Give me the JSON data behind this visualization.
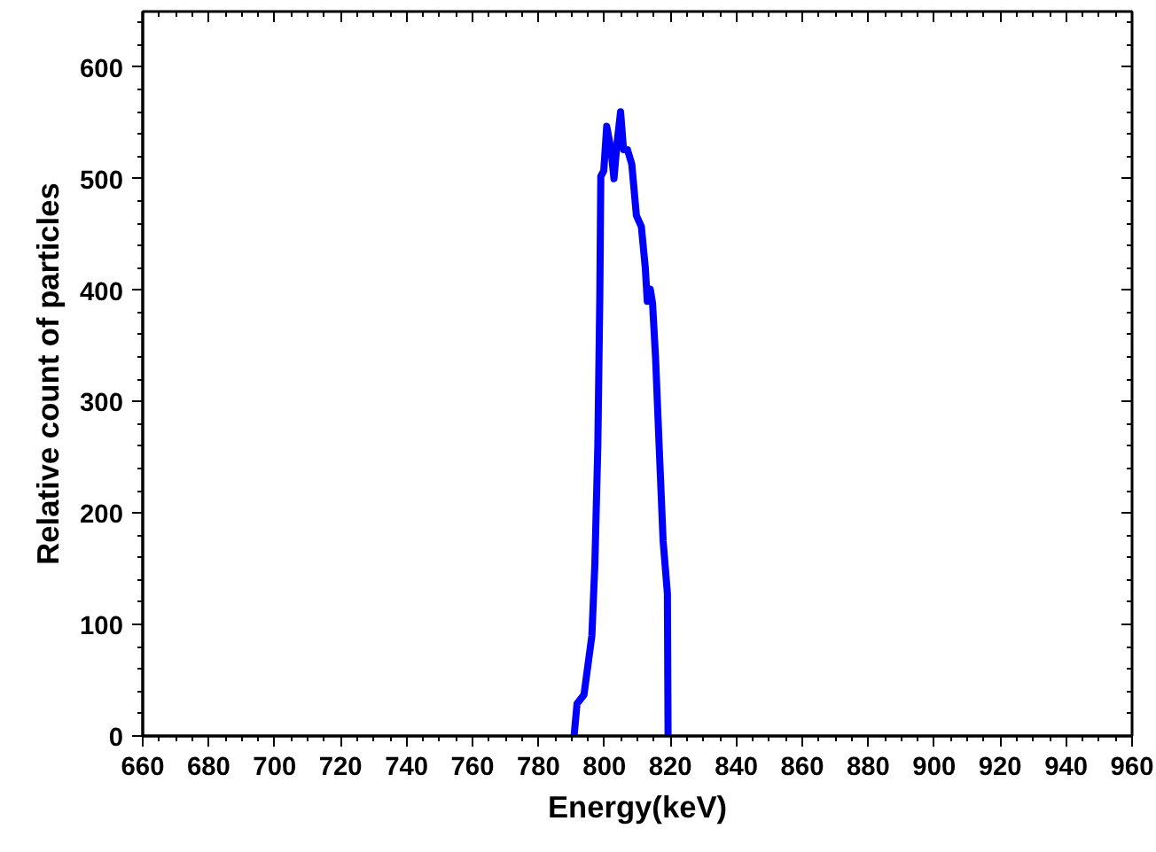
{
  "chart_data": {
    "type": "line",
    "xlabel": "Energy(keV)",
    "ylabel": "Relative count of particles",
    "xlim": [
      660,
      960
    ],
    "ylim": [
      0,
      650
    ],
    "xticks": [
      660,
      680,
      700,
      720,
      740,
      760,
      780,
      800,
      820,
      840,
      860,
      880,
      900,
      920,
      940,
      960
    ],
    "yticks": [
      0,
      100,
      200,
      300,
      400,
      500,
      600
    ],
    "grid": false,
    "marker": "none",
    "line_style": "solid",
    "series": [
      {
        "color": "#0000ff",
        "x": [
          790.8,
          791.7,
          793.8,
          796.2,
          797.1,
          798.0,
          798.6,
          798.9,
          799.8,
          800.7,
          802.0,
          802.9,
          803.8,
          804.9,
          805.8,
          807.0,
          808.3,
          809.7,
          811.2,
          812.4,
          813.0,
          813.9,
          814.6,
          815.5,
          816.6,
          817.8,
          819.1,
          819.3
        ],
        "values": [
          0,
          29,
          37,
          90,
          154,
          260,
          393,
          502,
          507,
          547,
          526,
          500,
          531,
          560,
          526,
          526,
          513,
          467,
          457,
          420,
          390,
          401,
          388,
          340,
          260,
          175,
          128,
          0
        ]
      }
    ]
  }
}
